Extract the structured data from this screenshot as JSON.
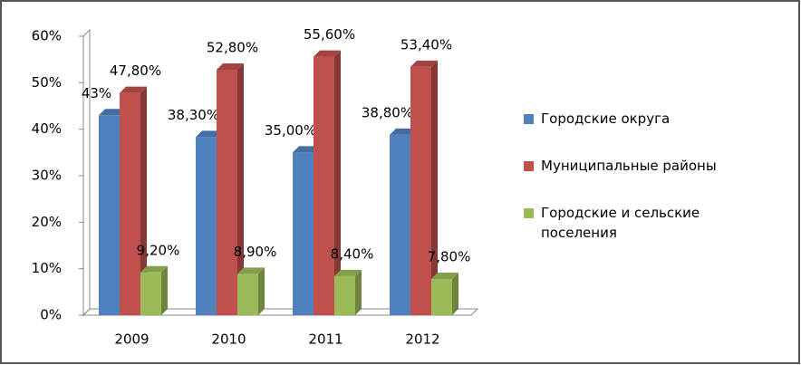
{
  "chart_data": {
    "type": "bar",
    "categories": [
      "2009",
      "2010",
      "2011",
      "2012"
    ],
    "series": [
      {
        "name": "Городские округа",
        "color": "#4f81bd",
        "values": [
          43,
          38.3,
          35.0,
          38.8
        ],
        "value_labels": [
          "43%",
          "38,30%",
          "35,00%",
          "38,80%"
        ]
      },
      {
        "name": "Муниципальные районы",
        "color": "#c0504d",
        "values": [
          47.8,
          52.8,
          55.6,
          53.4
        ],
        "value_labels": [
          "47,80%",
          "52,80%",
          "55,60%",
          "53,40%"
        ]
      },
      {
        "name": "Городские и сельские поселения",
        "color": "#9bbb59",
        "values": [
          9.2,
          8.9,
          8.4,
          7.8
        ],
        "value_labels": [
          "9,20%",
          "8,90%",
          "8,40%",
          "7,80%"
        ]
      }
    ],
    "ylim": [
      0,
      60
    ],
    "yticks": [
      {
        "value": 0,
        "label": "0%"
      },
      {
        "value": 10,
        "label": "10%"
      },
      {
        "value": 20,
        "label": "20%"
      },
      {
        "value": 30,
        "label": "30%"
      },
      {
        "value": 40,
        "label": "40%"
      },
      {
        "value": 50,
        "label": "50%"
      },
      {
        "value": 60,
        "label": "60%"
      }
    ],
    "grid": false,
    "legend": "right"
  }
}
